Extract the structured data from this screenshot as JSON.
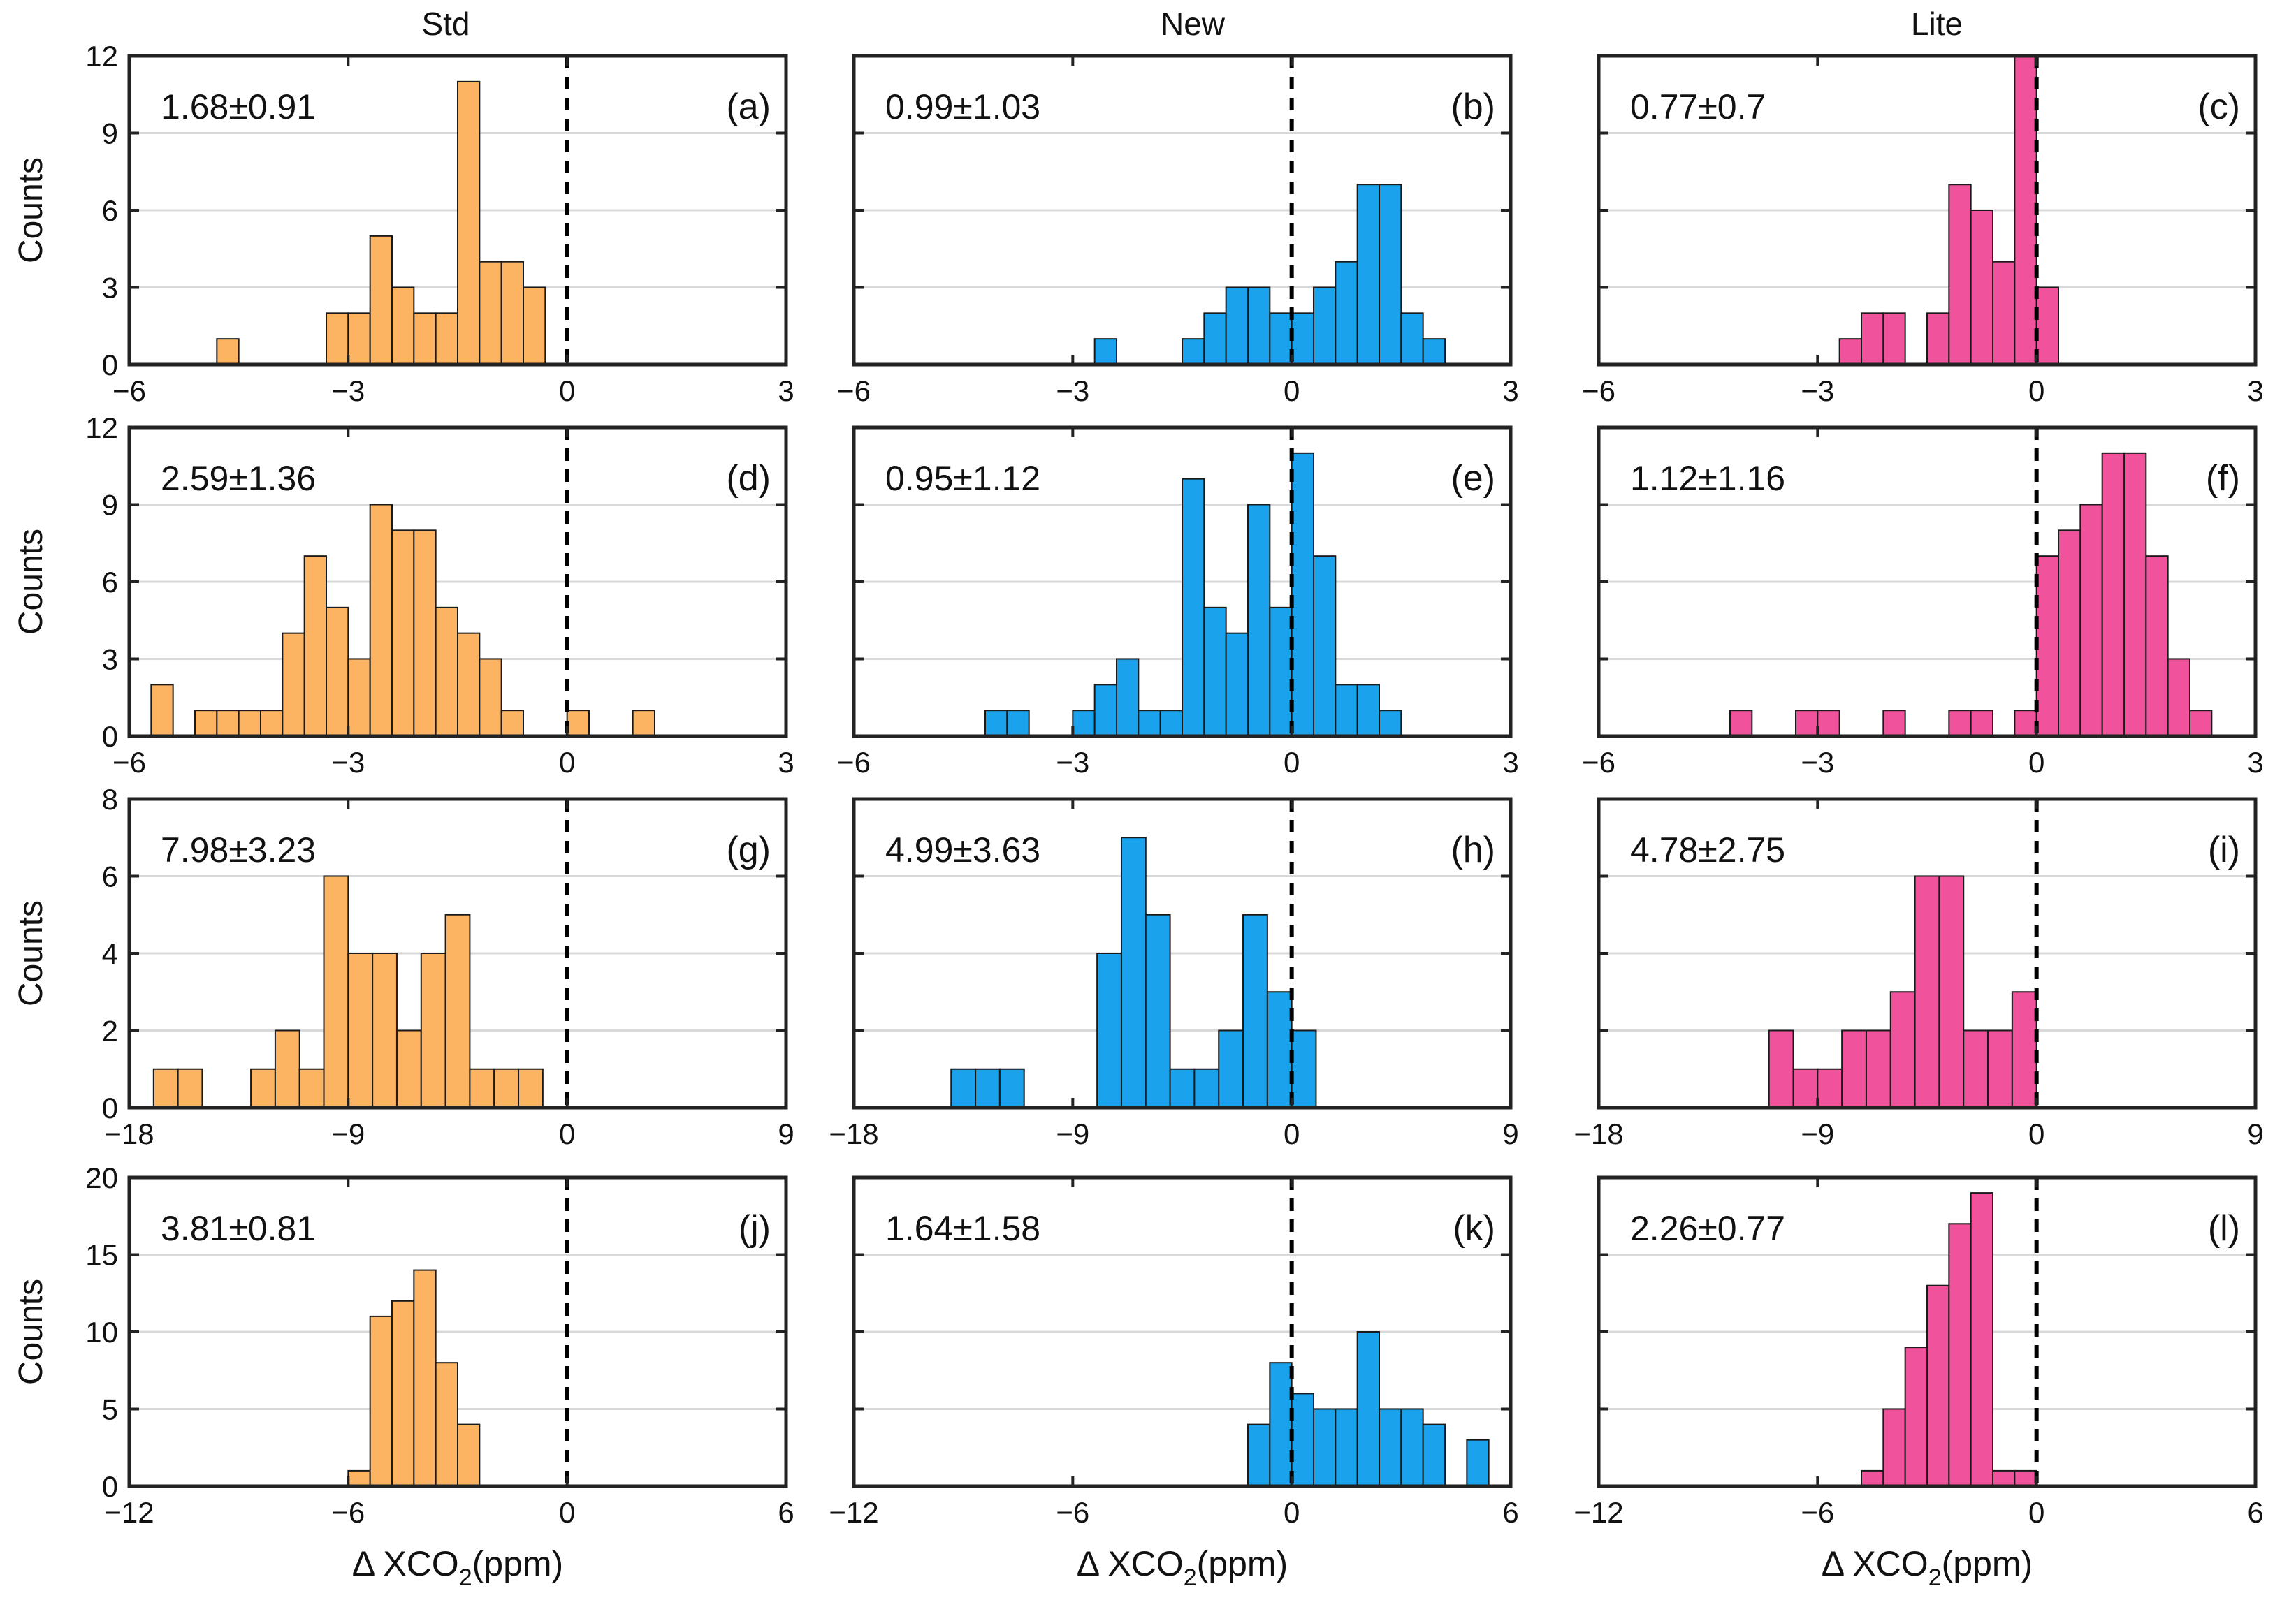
{
  "figure": {
    "column_titles": [
      "Std",
      "New",
      "Lite"
    ],
    "ylabel": "Counts",
    "xlabel_main": "Δ XCO",
    "xlabel_sub": "2",
    "xlabel_unit": "(ppm)",
    "colors": {
      "Std": "#fdb462",
      "New": "#1aa3ec",
      "Lite": "#f0529c"
    }
  },
  "chart_data": [
    {
      "type": "bar",
      "panel": "(a)",
      "column": "Std",
      "row": 0,
      "stat": "1.68±0.91",
      "xlim": [
        -6,
        3
      ],
      "xticks": [
        -6,
        -3,
        0,
        3
      ],
      "ylim": [
        0,
        12
      ],
      "yticks": [
        0,
        3,
        6,
        9,
        12
      ],
      "bin_width": 0.3,
      "bins": [
        [
          -4.8,
          1
        ],
        [
          -3.3,
          2
        ],
        [
          -3.0,
          2
        ],
        [
          -2.7,
          5
        ],
        [
          -2.4,
          3
        ],
        [
          -2.1,
          2
        ],
        [
          -1.8,
          2
        ],
        [
          -1.5,
          11
        ],
        [
          -1.2,
          4
        ],
        [
          -0.9,
          4
        ],
        [
          -0.6,
          3
        ]
      ]
    },
    {
      "type": "bar",
      "panel": "(b)",
      "column": "New",
      "row": 0,
      "stat": "0.99±1.03",
      "xlim": [
        -6,
        3
      ],
      "xticks": [
        -6,
        -3,
        0,
        3
      ],
      "ylim": [
        0,
        12
      ],
      "yticks": [
        0,
        3,
        6,
        9,
        12
      ],
      "bin_width": 0.3,
      "bins": [
        [
          -2.7,
          1
        ],
        [
          -1.5,
          1
        ],
        [
          -1.2,
          2
        ],
        [
          -0.9,
          3
        ],
        [
          -0.6,
          3
        ],
        [
          -0.3,
          2
        ],
        [
          0.0,
          2
        ],
        [
          0.3,
          3
        ],
        [
          0.6,
          4
        ],
        [
          0.9,
          7
        ],
        [
          1.2,
          7
        ],
        [
          1.5,
          2
        ],
        [
          1.8,
          1
        ]
      ]
    },
    {
      "type": "bar",
      "panel": "(c)",
      "column": "Lite",
      "row": 0,
      "stat": "0.77±0.7",
      "xlim": [
        -6,
        3
      ],
      "xticks": [
        -6,
        -3,
        0,
        3
      ],
      "ylim": [
        0,
        12
      ],
      "yticks": [
        0,
        3,
        6,
        9,
        12
      ],
      "bin_width": 0.3,
      "bins": [
        [
          -2.7,
          1
        ],
        [
          -2.4,
          2
        ],
        [
          -2.1,
          2
        ],
        [
          -1.5,
          2
        ],
        [
          -1.2,
          7
        ],
        [
          -0.9,
          6
        ],
        [
          -0.6,
          4
        ],
        [
          -0.3,
          12
        ],
        [
          0.0,
          3
        ]
      ]
    },
    {
      "type": "bar",
      "panel": "(d)",
      "column": "Std",
      "row": 1,
      "stat": "2.59±1.36",
      "xlim": [
        -6,
        3
      ],
      "xticks": [
        -6,
        -3,
        0,
        3
      ],
      "ylim": [
        0,
        12
      ],
      "yticks": [
        0,
        3,
        6,
        9,
        12
      ],
      "bin_width": 0.3,
      "bins": [
        [
          -5.7,
          2
        ],
        [
          -5.1,
          1
        ],
        [
          -4.8,
          1
        ],
        [
          -4.5,
          1
        ],
        [
          -4.2,
          1
        ],
        [
          -3.9,
          4
        ],
        [
          -3.6,
          7
        ],
        [
          -3.3,
          5
        ],
        [
          -3.0,
          3
        ],
        [
          -2.7,
          9
        ],
        [
          -2.4,
          8
        ],
        [
          -2.1,
          8
        ],
        [
          -1.8,
          5
        ],
        [
          -1.5,
          4
        ],
        [
          -1.2,
          3
        ],
        [
          -0.9,
          1
        ],
        [
          0.0,
          1
        ],
        [
          0.9,
          1
        ]
      ]
    },
    {
      "type": "bar",
      "panel": "(e)",
      "column": "New",
      "row": 1,
      "stat": "0.95±1.12",
      "xlim": [
        -6,
        3
      ],
      "xticks": [
        -6,
        -3,
        0,
        3
      ],
      "ylim": [
        0,
        12
      ],
      "yticks": [
        0,
        3,
        6,
        9,
        12
      ],
      "bin_width": 0.3,
      "bins": [
        [
          -4.2,
          1
        ],
        [
          -3.9,
          1
        ],
        [
          -3.0,
          1
        ],
        [
          -2.7,
          2
        ],
        [
          -2.4,
          3
        ],
        [
          -2.1,
          1
        ],
        [
          -1.8,
          1
        ],
        [
          -1.5,
          10
        ],
        [
          -1.2,
          5
        ],
        [
          -0.9,
          4
        ],
        [
          -0.6,
          9
        ],
        [
          -0.3,
          5
        ],
        [
          0.0,
          11
        ],
        [
          0.3,
          7
        ],
        [
          0.6,
          2
        ],
        [
          0.9,
          2
        ],
        [
          1.2,
          1
        ]
      ]
    },
    {
      "type": "bar",
      "panel": "(f)",
      "column": "Lite",
      "row": 1,
      "stat": "1.12±1.16",
      "xlim": [
        -6,
        3
      ],
      "xticks": [
        -6,
        -3,
        0,
        3
      ],
      "ylim": [
        0,
        12
      ],
      "yticks": [
        0,
        3,
        6,
        9,
        12
      ],
      "bin_width": 0.3,
      "bins": [
        [
          -4.2,
          1
        ],
        [
          -3.3,
          1
        ],
        [
          -3.0,
          1
        ],
        [
          -2.1,
          1
        ],
        [
          -1.2,
          1
        ],
        [
          -0.9,
          1
        ],
        [
          -0.3,
          1
        ],
        [
          0.0,
          7
        ],
        [
          0.3,
          8
        ],
        [
          0.6,
          9
        ],
        [
          0.9,
          11
        ],
        [
          1.2,
          11
        ],
        [
          1.5,
          7
        ],
        [
          1.8,
          3
        ],
        [
          2.1,
          1
        ]
      ]
    },
    {
      "type": "bar",
      "panel": "(g)",
      "column": "Std",
      "row": 2,
      "stat": "7.98±3.23",
      "xlim": [
        -18,
        9
      ],
      "xticks": [
        -18,
        -9,
        0,
        9
      ],
      "ylim": [
        0,
        8
      ],
      "yticks": [
        0,
        2,
        4,
        6,
        8
      ],
      "bin_width": 1.0,
      "bins": [
        [
          -17,
          1
        ],
        [
          -16,
          1
        ],
        [
          -13,
          1
        ],
        [
          -12,
          2
        ],
        [
          -11,
          1
        ],
        [
          -10,
          6
        ],
        [
          -9,
          4
        ],
        [
          -8,
          4
        ],
        [
          -7,
          2
        ],
        [
          -6,
          4
        ],
        [
          -5,
          5
        ],
        [
          -4,
          1
        ],
        [
          -3,
          1
        ],
        [
          -2,
          1
        ]
      ]
    },
    {
      "type": "bar",
      "panel": "(h)",
      "column": "New",
      "row": 2,
      "stat": "4.99±3.63",
      "xlim": [
        -18,
        9
      ],
      "xticks": [
        -18,
        -9,
        0,
        9
      ],
      "ylim": [
        0,
        8
      ],
      "yticks": [
        0,
        2,
        4,
        6,
        8
      ],
      "bin_width": 1.0,
      "bins": [
        [
          -14,
          1
        ],
        [
          -13,
          1
        ],
        [
          -12,
          1
        ],
        [
          -8,
          4
        ],
        [
          -7,
          7
        ],
        [
          -6,
          5
        ],
        [
          -5,
          1
        ],
        [
          -4,
          1
        ],
        [
          -3,
          2
        ],
        [
          -2,
          5
        ],
        [
          -1,
          3
        ],
        [
          0,
          2
        ]
      ]
    },
    {
      "type": "bar",
      "panel": "(i)",
      "column": "Lite",
      "row": 2,
      "stat": "4.78±2.75",
      "xlim": [
        -18,
        9
      ],
      "xticks": [
        -18,
        -9,
        0,
        9
      ],
      "ylim": [
        0,
        8
      ],
      "yticks": [
        0,
        2,
        4,
        6,
        8
      ],
      "bin_width": 1.0,
      "bins": [
        [
          -11,
          2
        ],
        [
          -10,
          1
        ],
        [
          -9,
          1
        ],
        [
          -8,
          2
        ],
        [
          -7,
          2
        ],
        [
          -6,
          3
        ],
        [
          -5,
          6
        ],
        [
          -4,
          6
        ],
        [
          -3,
          2
        ],
        [
          -2,
          2
        ],
        [
          -1,
          3
        ]
      ]
    },
    {
      "type": "bar",
      "panel": "(j)",
      "column": "Std",
      "row": 3,
      "stat": "3.81±0.81",
      "xlim": [
        -12,
        6
      ],
      "xticks": [
        -12,
        -6,
        0,
        6
      ],
      "ylim": [
        0,
        20
      ],
      "yticks": [
        0,
        5,
        10,
        15,
        20
      ],
      "bin_width": 0.6,
      "bins": [
        [
          -6.0,
          1
        ],
        [
          -5.4,
          11
        ],
        [
          -4.8,
          12
        ],
        [
          -4.2,
          14
        ],
        [
          -3.6,
          8
        ],
        [
          -3.0,
          4
        ]
      ]
    },
    {
      "type": "bar",
      "panel": "(k)",
      "column": "New",
      "row": 3,
      "stat": "1.64±1.58",
      "xlim": [
        -12,
        6
      ],
      "xticks": [
        -12,
        -6,
        0,
        6
      ],
      "ylim": [
        0,
        20
      ],
      "yticks": [
        0,
        5,
        10,
        15,
        20
      ],
      "bin_width": 0.6,
      "bins": [
        [
          -1.2,
          4
        ],
        [
          -0.6,
          8
        ],
        [
          0.0,
          6
        ],
        [
          0.6,
          5
        ],
        [
          1.2,
          5
        ],
        [
          1.8,
          10
        ],
        [
          2.4,
          5
        ],
        [
          3.0,
          5
        ],
        [
          3.6,
          4
        ],
        [
          4.8,
          3
        ]
      ]
    },
    {
      "type": "bar",
      "panel": "(l)",
      "column": "Lite",
      "row": 3,
      "stat": "2.26±0.77",
      "xlim": [
        -12,
        6
      ],
      "xticks": [
        -12,
        -6,
        0,
        6
      ],
      "ylim": [
        0,
        20
      ],
      "yticks": [
        0,
        5,
        10,
        15,
        20
      ],
      "bin_width": 0.6,
      "bins": [
        [
          -4.8,
          1
        ],
        [
          -4.2,
          5
        ],
        [
          -3.6,
          9
        ],
        [
          -3.0,
          13
        ],
        [
          -2.4,
          17
        ],
        [
          -1.8,
          19
        ],
        [
          -1.2,
          1
        ],
        [
          -0.6,
          1
        ]
      ]
    }
  ]
}
